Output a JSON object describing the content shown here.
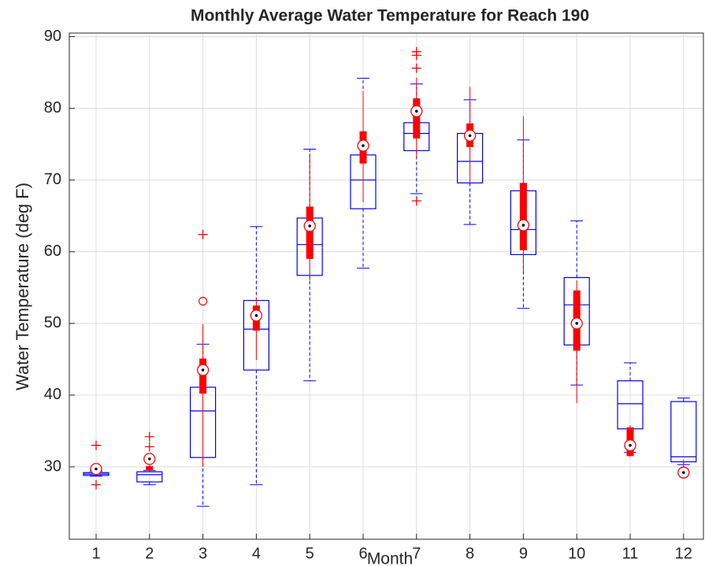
{
  "chart_data": {
    "type": "boxplot",
    "title": "Monthly Average Water Temperature for Reach 190",
    "xlabel": "Month",
    "ylabel": "Water Temperature (deg F)",
    "categories": [
      "1",
      "2",
      "3",
      "4",
      "5",
      "6",
      "7",
      "8",
      "9",
      "10",
      "11",
      "12"
    ],
    "ylim": [
      19.9,
      90.5
    ],
    "yticks": [
      30,
      40,
      50,
      60,
      70,
      80,
      90
    ],
    "grid": true,
    "boxes": {
      "color": "#0000ff",
      "low": [
        28.7,
        27.5,
        24.5,
        27.5,
        42.0,
        57.7,
        68.1,
        63.8,
        52.1,
        41.4,
        32.0,
        30.3
      ],
      "q1": [
        28.8,
        27.9,
        31.3,
        43.5,
        56.7,
        66.0,
        74.1,
        69.6,
        59.6,
        47.0,
        35.3,
        30.7
      ],
      "median": [
        29.0,
        28.9,
        37.8,
        49.2,
        61.0,
        70.0,
        76.5,
        72.6,
        63.1,
        52.6,
        38.8,
        31.4
      ],
      "q3": [
        29.2,
        29.3,
        41.1,
        53.2,
        64.7,
        73.5,
        78.0,
        76.5,
        68.5,
        56.4,
        42.0,
        39.1
      ],
      "high": [
        29.4,
        29.5,
        47.1,
        63.5,
        74.3,
        84.2,
        83.4,
        81.2,
        75.6,
        64.3,
        44.5,
        39.6
      ]
    },
    "overlay": {
      "color": "#ff0000",
      "low": [
        29.4,
        29.3,
        30.0,
        44.9,
        56.0,
        66.9,
        73.2,
        69.7,
        57.3,
        38.9,
        31.4,
        29.0
      ],
      "q1": [
        29.6,
        29.5,
        40.2,
        49.0,
        59.0,
        72.3,
        75.8,
        74.6,
        60.2,
        46.2,
        31.5,
        29.1
      ],
      "median": [
        29.7,
        31.1,
        43.5,
        51.1,
        63.6,
        74.8,
        79.6,
        76.2,
        63.7,
        50.0,
        33.0,
        29.2
      ],
      "q3": [
        29.8,
        30.1,
        45.1,
        52.5,
        66.3,
        76.8,
        81.4,
        77.9,
        69.6,
        54.6,
        35.5,
        29.4
      ],
      "high": [
        30.0,
        30.4,
        49.9,
        53.6,
        73.7,
        82.4,
        84.3,
        83.0,
        78.9,
        56.0,
        35.8,
        31.0
      ]
    },
    "outliers": {
      "color": "#ff0000",
      "x": [
        "1",
        "1",
        "2",
        "2",
        "3",
        "3",
        "7",
        "7",
        "7",
        "7"
      ],
      "values": [
        33.0,
        27.5,
        34.2,
        32.8,
        53.1,
        62.4,
        87.9,
        87.4,
        85.6,
        67.1
      ],
      "markers": [
        "+",
        "+",
        "+",
        "+",
        "o",
        "+",
        "+",
        "+",
        "+",
        "+"
      ]
    }
  }
}
